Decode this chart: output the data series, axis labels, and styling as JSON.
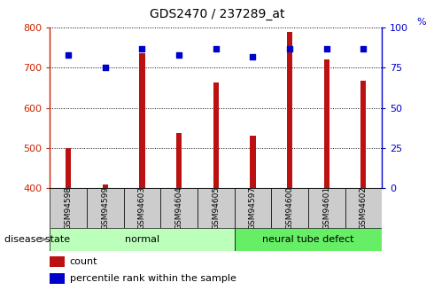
{
  "title": "GDS2470 / 237289_at",
  "samples": [
    "GSM94598",
    "GSM94599",
    "GSM94603",
    "GSM94604",
    "GSM94605",
    "GSM94597",
    "GSM94600",
    "GSM94601",
    "GSM94602"
  ],
  "counts": [
    500,
    410,
    735,
    537,
    663,
    530,
    790,
    720,
    668
  ],
  "percentiles": [
    83,
    75,
    87,
    83,
    87,
    82,
    87,
    87,
    87
  ],
  "bar_bottom": 400,
  "ylim_left": [
    400,
    800
  ],
  "ylim_right": [
    0,
    100
  ],
  "yticks_left": [
    400,
    500,
    600,
    700,
    800
  ],
  "yticks_right": [
    0,
    25,
    50,
    75,
    100
  ],
  "groups": [
    {
      "label": "normal",
      "start": 0,
      "end": 5,
      "color": "#bbffbb"
    },
    {
      "label": "neural tube defect",
      "start": 5,
      "end": 9,
      "color": "#66ee66"
    }
  ],
  "bar_color": "#bb1111",
  "dot_color": "#0000cc",
  "left_axis_color": "#cc2200",
  "right_axis_color": "#0000cc",
  "tick_bg": "#cccccc",
  "disease_state_label": "disease state",
  "legend_count_label": "count",
  "legend_pct_label": "percentile rank within the sample",
  "bar_width": 0.15
}
